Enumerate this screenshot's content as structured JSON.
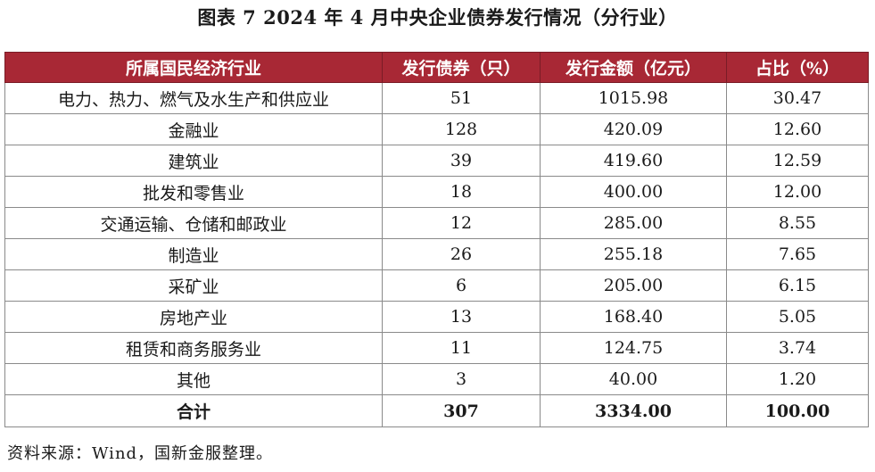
{
  "title": "图表 7  2024 年 4 月中央企业债券发行情况（分行业）",
  "table": {
    "headers": [
      "所属国民经济行业",
      "发行债券（只）",
      "发行金额（亿元）",
      "占比（%）"
    ],
    "rows": [
      [
        "电力、热力、燃气及水生产和供应业",
        "51",
        "1015.98",
        "30.47"
      ],
      [
        "金融业",
        "128",
        "420.09",
        "12.60"
      ],
      [
        "建筑业",
        "39",
        "419.60",
        "12.59"
      ],
      [
        "批发和零售业",
        "18",
        "400.00",
        "12.00"
      ],
      [
        "交通运输、仓储和邮政业",
        "12",
        "285.00",
        "8.55"
      ],
      [
        "制造业",
        "26",
        "255.18",
        "7.65"
      ],
      [
        "采矿业",
        "6",
        "205.00",
        "6.15"
      ],
      [
        "房地产业",
        "13",
        "168.40",
        "5.05"
      ],
      [
        "租赁和商务服务业",
        "11",
        "124.75",
        "3.74"
      ],
      [
        "其他",
        "3",
        "40.00",
        "1.20"
      ]
    ],
    "total": [
      "合计",
      "307",
      "3334.00",
      "100.00"
    ]
  },
  "source": "资料来源：Wind，国新金服整理。",
  "colors": {
    "header_background": "#a82835",
    "header_text": "#ffffff",
    "border": "#8a8a8a"
  }
}
